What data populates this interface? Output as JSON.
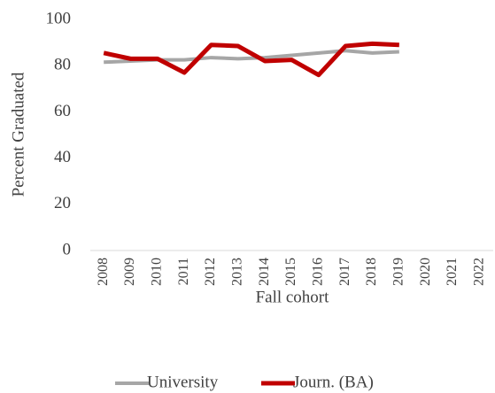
{
  "chart_data": {
    "type": "line",
    "y_label": "Percent Graduated",
    "x_label": "Fall cohort",
    "categories": [
      "2008",
      "2009",
      "2010",
      "2011",
      "2012",
      "2013",
      "2014",
      "2015",
      "2016",
      "2017",
      "2018",
      "2019",
      "2020",
      "2021",
      "2022"
    ],
    "series": [
      {
        "name": "University",
        "color": "#a6a6a6",
        "values": [
          81.5,
          82,
          82.5,
          82.5,
          83.5,
          83,
          83.5,
          84.5,
          85.5,
          86.5,
          85.5,
          86,
          null,
          null,
          null
        ]
      },
      {
        "name": "Journ. (BA)",
        "color": "#c00000",
        "values": [
          85.5,
          83,
          83,
          77,
          89,
          88.5,
          82,
          82.5,
          76,
          88.5,
          89.5,
          89,
          null,
          null,
          null
        ]
      }
    ],
    "ylim": [
      0,
      100
    ],
    "yticks": [
      0,
      20,
      40,
      60,
      80,
      100
    ],
    "grid": false,
    "legend": "bottom"
  }
}
